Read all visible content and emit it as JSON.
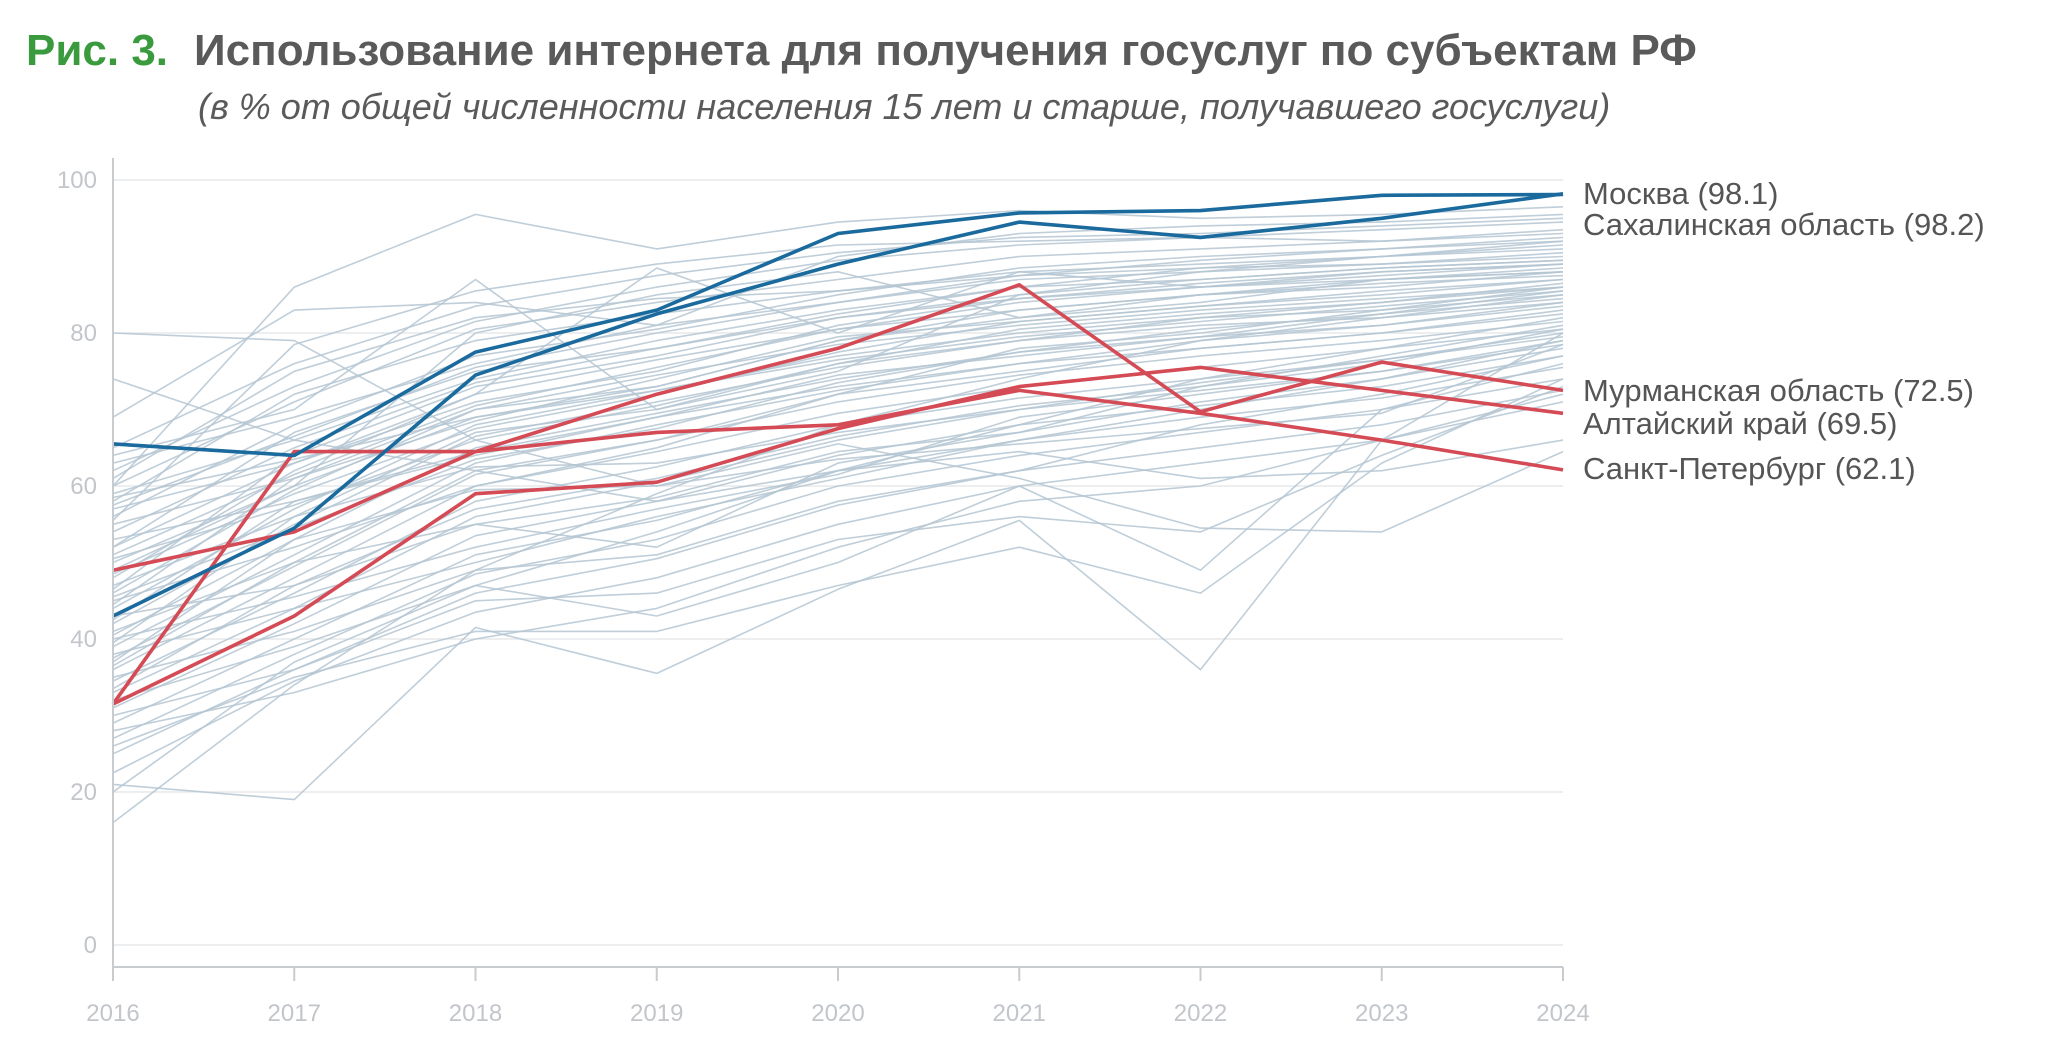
{
  "figure": {
    "number": "Рис. 3.",
    "title": "Использование интернета для получения госуслуг по субъектам РФ",
    "subtitle": "(в % от общей численности населения 15 лет и старше, получавшего госуслуги)"
  },
  "chart_data": {
    "type": "line",
    "title": "Использование интернета для получения госуслуг по субъектам РФ",
    "subtitle": "(в % от общей численности населения 15 лет и старше, получавшего госуслуги)",
    "x": [
      2016,
      2017,
      2018,
      2019,
      2020,
      2021,
      2022,
      2023,
      2024
    ],
    "x_tick_labels": [
      "2016",
      "2017",
      "2018",
      "2019",
      "2020",
      "2021",
      "2022",
      "2023",
      "2024"
    ],
    "ylim": [
      0,
      100
    ],
    "y_ticks": [
      0,
      20,
      40,
      60,
      80,
      100
    ],
    "y_tick_labels": [
      "0",
      "20",
      "40",
      "60",
      "80",
      "100"
    ],
    "grid": "horizontal",
    "colors": {
      "background_series": "#b4c6d2",
      "highlight_blue": "#1a6a9e",
      "highlight_red": "#d44a55",
      "grid": "#e2e4e6",
      "axis": "#c9ccce",
      "title_green": "#3a9a3e"
    },
    "highlighted_series": [
      {
        "label": "Москва (98.1)",
        "color": "#1a6a9e",
        "values": [
          65.5,
          64.0,
          77.5,
          83.0,
          93.0,
          95.7,
          96.0,
          98.0,
          98.1
        ]
      },
      {
        "label": "Сахалинская область (98.2)",
        "color": "#1a6a9e",
        "values": [
          43.0,
          54.5,
          74.5,
          82.5,
          89.0,
          94.5,
          92.5,
          95.0,
          98.2
        ]
      },
      {
        "label": "Мурманская область (72.5)",
        "color": "#d44a55",
        "values": [
          49.0,
          54.0,
          64.5,
          72.0,
          78.0,
          86.3,
          69.7,
          76.2,
          72.5
        ]
      },
      {
        "label": "Алтайский край (69.5)",
        "color": "#d44a55",
        "values": [
          31.5,
          43.0,
          59.0,
          60.5,
          67.5,
          73.0,
          75.5,
          72.5,
          69.5
        ]
      },
      {
        "label": "Санкт-Петербург (62.1)",
        "color": "#d44a55",
        "values": [
          31.5,
          64.5,
          64.5,
          67.0,
          68.0,
          72.5,
          69.5,
          66.0,
          62.1
        ]
      }
    ],
    "background_series": [
      [
        61.0,
        75.0,
        82.0,
        84.5,
        85.5,
        87.5,
        88.5,
        89.0,
        90.0
      ],
      [
        55.5,
        78.5,
        85.5,
        89.0,
        91.5,
        92.0,
        92.5,
        92.0,
        93.0
      ],
      [
        58.0,
        72.0,
        79.0,
        82.5,
        85.5,
        88.0,
        89.0,
        90.0,
        91.0
      ],
      [
        52.0,
        67.0,
        75.0,
        78.0,
        82.0,
        84.5,
        86.0,
        87.0,
        88.5
      ],
      [
        48.0,
        62.0,
        72.0,
        76.5,
        80.5,
        83.0,
        85.0,
        86.5,
        87.5
      ],
      [
        46.0,
        59.5,
        70.0,
        74.5,
        78.5,
        81.0,
        83.0,
        84.5,
        86.0
      ],
      [
        44.0,
        57.0,
        68.0,
        72.5,
        77.0,
        80.0,
        82.0,
        83.0,
        85.0
      ],
      [
        42.0,
        55.0,
        66.5,
        71.0,
        75.5,
        79.0,
        81.0,
        82.0,
        84.0
      ],
      [
        40.5,
        53.0,
        65.0,
        69.5,
        74.0,
        77.5,
        79.5,
        81.0,
        83.5
      ],
      [
        39.0,
        51.0,
        63.0,
        68.0,
        72.5,
        76.0,
        78.0,
        80.0,
        82.5
      ],
      [
        37.5,
        49.5,
        61.5,
        66.0,
        71.0,
        74.5,
        77.0,
        79.0,
        81.5
      ],
      [
        36.0,
        48.0,
        60.0,
        64.5,
        69.5,
        73.0,
        75.5,
        78.0,
        80.5
      ],
      [
        34.5,
        46.0,
        58.0,
        62.5,
        68.0,
        71.5,
        74.0,
        76.5,
        79.5
      ],
      [
        33.0,
        44.0,
        56.0,
        60.5,
        66.0,
        70.0,
        72.5,
        75.0,
        78.5
      ],
      [
        31.0,
        42.0,
        53.5,
        58.0,
        64.0,
        68.0,
        70.5,
        73.0,
        77.0
      ],
      [
        29.0,
        40.0,
        51.0,
        55.5,
        62.0,
        66.0,
        69.0,
        71.5,
        75.5
      ],
      [
        27.0,
        38.0,
        48.5,
        53.0,
        60.0,
        64.0,
        67.0,
        70.0,
        74.0
      ],
      [
        25.0,
        36.0,
        46.0,
        50.5,
        57.5,
        62.0,
        65.0,
        68.0,
        72.5
      ],
      [
        22.5,
        34.5,
        43.5,
        48.0,
        55.0,
        60.0,
        63.0,
        66.0,
        71.0
      ],
      [
        20.0,
        37.0,
        47.0,
        54.0,
        62.0,
        68.0,
        74.0,
        78.0,
        82.0
      ],
      [
        16.0,
        34.0,
        49.0,
        59.0,
        68.0,
        74.0,
        79.0,
        82.0,
        85.0
      ],
      [
        21.0,
        19.0,
        41.5,
        35.5,
        46.5,
        55.5,
        36.0,
        66.0,
        80.0
      ],
      [
        26.0,
        35.0,
        41.0,
        41.0,
        47.0,
        52.0,
        46.0,
        63.0,
        74.0
      ],
      [
        80.0,
        79.0,
        66.0,
        60.0,
        65.5,
        61.0,
        54.5,
        54.0,
        64.5
      ],
      [
        74.0,
        66.0,
        62.0,
        58.0,
        62.0,
        64.5,
        61.0,
        62.0,
        66.0
      ],
      [
        60.0,
        86.0,
        95.5,
        91.0,
        94.5,
        96.0,
        95.0,
        95.5,
        96.5
      ],
      [
        69.0,
        83.0,
        84.0,
        81.0,
        90.0,
        93.0,
        94.0,
        94.5,
        95.5
      ],
      [
        64.0,
        70.0,
        87.0,
        70.0,
        75.0,
        85.0,
        88.0,
        90.0,
        92.0
      ],
      [
        57.0,
        63.0,
        72.0,
        88.5,
        80.0,
        88.0,
        86.0,
        88.0,
        89.0
      ],
      [
        50.0,
        60.0,
        80.0,
        85.0,
        88.0,
        82.0,
        84.0,
        87.0,
        88.0
      ],
      [
        45.0,
        52.0,
        60.0,
        65.0,
        72.0,
        78.0,
        80.0,
        83.0,
        86.0
      ],
      [
        43.0,
        47.0,
        55.0,
        52.0,
        63.0,
        67.0,
        73.0,
        77.0,
        81.0
      ],
      [
        38.0,
        44.0,
        50.0,
        56.0,
        61.0,
        66.0,
        70.0,
        74.0,
        79.0
      ],
      [
        35.0,
        41.0,
        49.0,
        51.0,
        58.0,
        62.0,
        68.0,
        72.0,
        77.0
      ],
      [
        53.0,
        58.0,
        64.0,
        69.0,
        73.0,
        76.0,
        79.0,
        81.0,
        84.0
      ],
      [
        59.0,
        66.0,
        74.0,
        79.0,
        83.0,
        86.0,
        87.0,
        88.5,
        89.5
      ],
      [
        63.0,
        69.0,
        76.0,
        81.0,
        84.0,
        87.0,
        88.0,
        89.0,
        90.5
      ],
      [
        55.0,
        61.0,
        70.0,
        73.0,
        79.0,
        82.0,
        85.0,
        86.0,
        88.0
      ],
      [
        47.0,
        56.0,
        67.0,
        70.0,
        76.0,
        79.0,
        82.0,
        84.0,
        86.5
      ],
      [
        41.0,
        50.0,
        62.0,
        66.0,
        72.0,
        75.0,
        78.0,
        80.0,
        83.0
      ],
      [
        32.0,
        39.0,
        47.0,
        43.0,
        50.0,
        60.0,
        49.0,
        70.0,
        76.0
      ],
      [
        30.0,
        36.0,
        45.0,
        46.0,
        53.0,
        56.0,
        54.0,
        64.0,
        73.0
      ],
      [
        28.0,
        33.0,
        40.0,
        44.0,
        52.0,
        58.0,
        60.0,
        66.0,
        72.0
      ],
      [
        52.0,
        63.0,
        71.0,
        75.0,
        81.0,
        84.5,
        86.5,
        88.0,
        89.0
      ],
      [
        49.0,
        60.0,
        69.0,
        73.0,
        79.0,
        83.0,
        85.0,
        87.0,
        88.0
      ],
      [
        56.0,
        68.0,
        77.0,
        80.5,
        85.0,
        88.5,
        90.0,
        91.0,
        92.0
      ],
      [
        60.0,
        71.0,
        80.5,
        84.0,
        87.0,
        90.0,
        91.0,
        92.0,
        93.5
      ],
      [
        46.5,
        64.0,
        73.0,
        77.0,
        82.0,
        85.0,
        87.0,
        88.5,
        89.5
      ],
      [
        44.5,
        61.0,
        68.5,
        74.0,
        79.5,
        81.5,
        83.5,
        85.5,
        87.0
      ],
      [
        42.5,
        58.0,
        64.5,
        69.0,
        74.5,
        77.0,
        79.5,
        82.5,
        85.5
      ],
      [
        39.5,
        56.0,
        62.5,
        63.0,
        67.0,
        70.0,
        73.5,
        76.5,
        80.0
      ],
      [
        37.0,
        53.0,
        59.5,
        60.0,
        63.5,
        65.5,
        67.5,
        69.5,
        78.5
      ],
      [
        54.0,
        65.0,
        73.5,
        78.0,
        82.5,
        86.0,
        88.5,
        90.0,
        91.5
      ],
      [
        51.0,
        61.5,
        70.5,
        75.5,
        80.5,
        84.0,
        86.0,
        87.5,
        89.0
      ],
      [
        48.5,
        59.0,
        67.5,
        72.0,
        77.5,
        81.5,
        83.5,
        85.0,
        87.0
      ],
      [
        57.5,
        66.5,
        75.5,
        80.0,
        84.0,
        87.5,
        89.5,
        91.0,
        92.5
      ],
      [
        62.0,
        73.0,
        81.5,
        86.0,
        89.5,
        91.5,
        92.5,
        93.5,
        94.5
      ],
      [
        65.0,
        76.0,
        83.5,
        87.5,
        90.5,
        92.5,
        93.0,
        94.0,
        95.0
      ],
      [
        33.5,
        47.0,
        57.0,
        61.0,
        66.5,
        70.5,
        73.0,
        76.0,
        80.5
      ],
      [
        36.5,
        50.0,
        55.0,
        58.5,
        64.5,
        67.0,
        71.0,
        74.0,
        78.0
      ],
      [
        40.0,
        45.5,
        52.0,
        57.0,
        61.5,
        69.0,
        72.0,
        75.0,
        79.0
      ],
      [
        45.5,
        54.5,
        63.5,
        67.5,
        73.5,
        77.5,
        80.5,
        82.5,
        84.5
      ],
      [
        50.5,
        57.5,
        66.0,
        70.5,
        76.0,
        80.5,
        82.5,
        84.0,
        86.0
      ],
      [
        58.5,
        63.5,
        69.0,
        72.5,
        76.5,
        79.5,
        81.5,
        83.5,
        85.5
      ]
    ]
  }
}
